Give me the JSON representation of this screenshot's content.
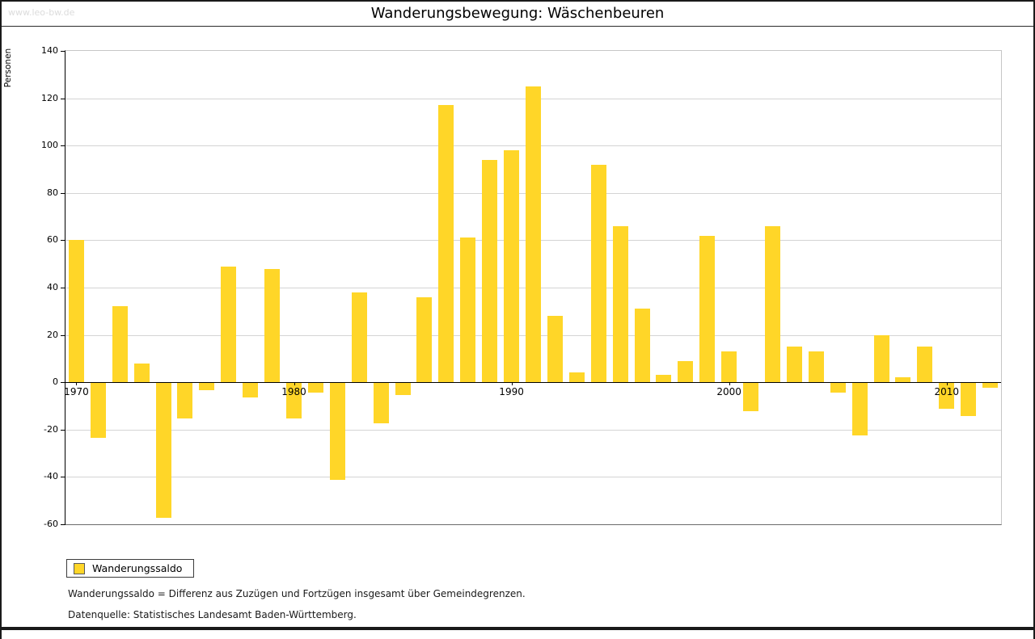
{
  "watermark": "www.leo-bw.de",
  "title": "Wanderungsbewegung: Wäschenbeuren",
  "ylabel": "Personen",
  "legend": {
    "label": "Wanderungssaldo"
  },
  "footnotes": [
    "Wanderungssaldo = Differenz aus Zuzügen und Fortzügen insgesamt über Gemeindegrenzen.",
    "Datenquelle: Statistisches Landesamt Baden-Württemberg."
  ],
  "colors": {
    "bar": "#ffd628",
    "grid": "#d4d4d4",
    "axis": "#000000",
    "watermark": "#dcdcdc"
  },
  "chart_data": {
    "type": "bar",
    "title": "Wanderungsbewegung: Wäschenbeuren",
    "xlabel": "",
    "ylabel": "Personen",
    "categories": [
      1970,
      1971,
      1972,
      1973,
      1974,
      1975,
      1976,
      1977,
      1978,
      1979,
      1980,
      1981,
      1982,
      1983,
      1984,
      1985,
      1986,
      1987,
      1988,
      1989,
      1990,
      1991,
      1992,
      1993,
      1994,
      1995,
      1996,
      1997,
      1998,
      1999,
      2000,
      2001,
      2002,
      2003,
      2004,
      2005,
      2006,
      2007,
      2008,
      2009,
      2010,
      2011,
      2012
    ],
    "values": [
      60,
      -23,
      32,
      8,
      -57,
      -15,
      -3,
      49,
      -6,
      48,
      -15,
      -4,
      -41,
      38,
      -17,
      -5,
      36,
      117,
      61,
      94,
      98,
      125,
      28,
      4,
      92,
      66,
      31,
      3,
      9,
      62,
      13,
      -12,
      66,
      15,
      13,
      -4,
      -22,
      20,
      2,
      15,
      -11,
      -14,
      -2
    ],
    "ylim": [
      -60,
      140
    ],
    "ytick_step": 20,
    "xticks": [
      1970,
      1980,
      1990,
      2000,
      2010
    ],
    "legend": [
      "Wanderungssaldo"
    ],
    "grid": true,
    "legend_position": "bottom-left"
  }
}
